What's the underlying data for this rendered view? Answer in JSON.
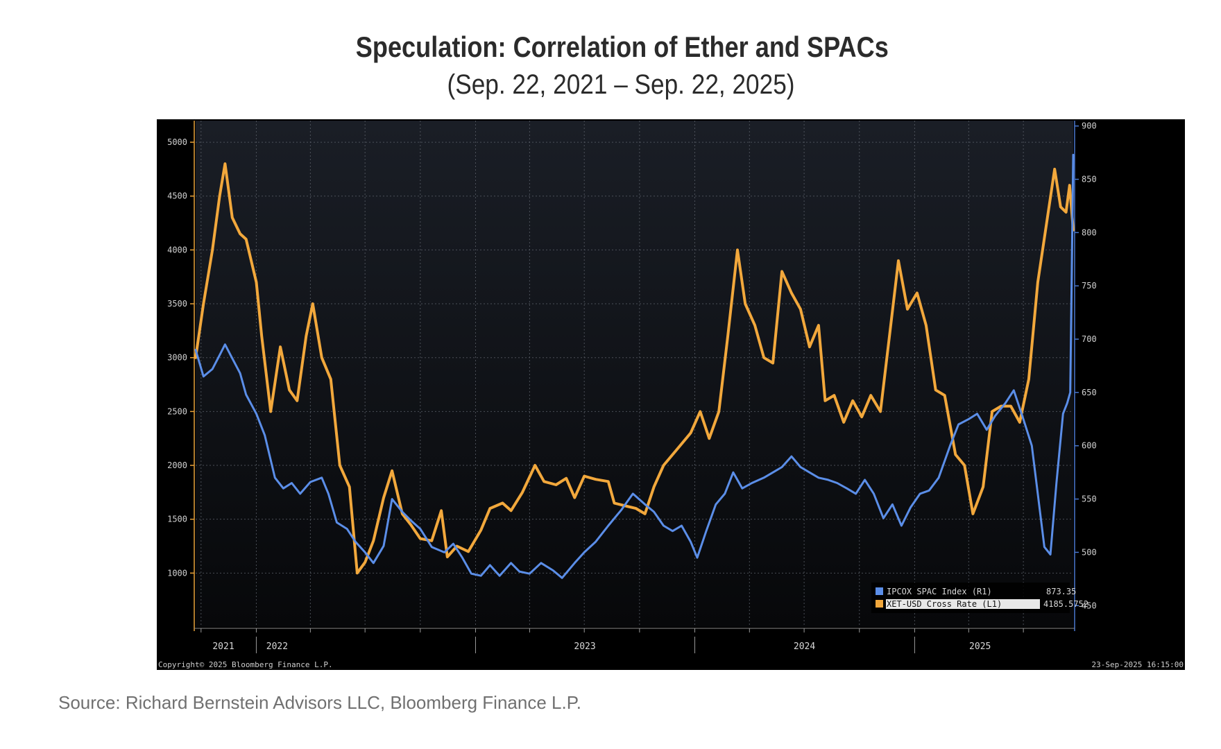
{
  "chart_data": {
    "type": "line",
    "title": "Speculation: Correlation of Ether and SPACs",
    "subtitle": "(Sep. 22, 2021 – Sep. 22, 2025)",
    "x_range": [
      "2021-09-22",
      "2025-09-22"
    ],
    "x_tick_labels": [
      "2021",
      "2022",
      "2023",
      "2024",
      "2025"
    ],
    "y_left": {
      "ticks": [
        1000,
        1500,
        2000,
        2500,
        3000,
        3500,
        4000,
        4500,
        5000
      ],
      "tick_labels": [
        "1000",
        "1500",
        "2000",
        "2500",
        "3000",
        "3500",
        "4000",
        "4500",
        "5000"
      ],
      "range": [
        500,
        5200
      ]
    },
    "y_right": {
      "ticks": [
        450,
        500,
        550,
        600,
        650,
        700,
        750,
        800,
        850,
        900
      ],
      "tick_labels": [
        "450",
        "500",
        "550",
        "600",
        "650",
        "700",
        "750",
        "800",
        "850",
        "900"
      ],
      "range": [
        430,
        905
      ]
    },
    "grid": true,
    "legend_position": "bottom-right",
    "series": [
      {
        "name": "IPCOX SPAC Index (R1)",
        "last_value": "873.35",
        "axis": "right",
        "color": "#5b8ee8",
        "points": [
          [
            "2021-09-22",
            690
          ],
          [
            "2021-10-05",
            665
          ],
          [
            "2021-10-20",
            672
          ],
          [
            "2021-11-01",
            685
          ],
          [
            "2021-11-10",
            695
          ],
          [
            "2021-11-22",
            682
          ],
          [
            "2021-12-05",
            668
          ],
          [
            "2021-12-15",
            648
          ],
          [
            "2022-01-01",
            630
          ],
          [
            "2022-01-15",
            610
          ],
          [
            "2022-02-01",
            570
          ],
          [
            "2022-02-15",
            560
          ],
          [
            "2022-03-01",
            565
          ],
          [
            "2022-03-15",
            555
          ],
          [
            "2022-04-01",
            566
          ],
          [
            "2022-04-20",
            570
          ],
          [
            "2022-05-01",
            555
          ],
          [
            "2022-05-15",
            528
          ],
          [
            "2022-06-01",
            522
          ],
          [
            "2022-06-15",
            510
          ],
          [
            "2022-07-01",
            500
          ],
          [
            "2022-07-15",
            490
          ],
          [
            "2022-08-01",
            506
          ],
          [
            "2022-08-15",
            550
          ],
          [
            "2022-09-01",
            538
          ],
          [
            "2022-09-15",
            530
          ],
          [
            "2022-10-01",
            522
          ],
          [
            "2022-10-20",
            505
          ],
          [
            "2022-11-10",
            500
          ],
          [
            "2022-11-25",
            508
          ],
          [
            "2022-12-10",
            495
          ],
          [
            "2022-12-25",
            480
          ],
          [
            "2023-01-10",
            478
          ],
          [
            "2023-01-25",
            488
          ],
          [
            "2023-02-10",
            478
          ],
          [
            "2023-03-01",
            490
          ],
          [
            "2023-03-15",
            482
          ],
          [
            "2023-04-01",
            480
          ],
          [
            "2023-04-20",
            490
          ],
          [
            "2023-05-10",
            483
          ],
          [
            "2023-05-25",
            476
          ],
          [
            "2023-06-15",
            490
          ],
          [
            "2023-07-01",
            500
          ],
          [
            "2023-07-20",
            510
          ],
          [
            "2023-08-10",
            525
          ],
          [
            "2023-09-01",
            540
          ],
          [
            "2023-09-20",
            555
          ],
          [
            "2023-10-10",
            545
          ],
          [
            "2023-10-25",
            538
          ],
          [
            "2023-11-10",
            525
          ],
          [
            "2023-11-25",
            520
          ],
          [
            "2023-12-10",
            525
          ],
          [
            "2023-12-25",
            510
          ],
          [
            "2024-01-05",
            495
          ],
          [
            "2024-01-20",
            520
          ],
          [
            "2024-02-05",
            545
          ],
          [
            "2024-02-20",
            555
          ],
          [
            "2024-03-05",
            575
          ],
          [
            "2024-03-20",
            560
          ],
          [
            "2024-04-05",
            565
          ],
          [
            "2024-04-25",
            570
          ],
          [
            "2024-05-10",
            575
          ],
          [
            "2024-05-25",
            580
          ],
          [
            "2024-06-10",
            590
          ],
          [
            "2024-06-25",
            580
          ],
          [
            "2024-07-10",
            575
          ],
          [
            "2024-07-25",
            570
          ],
          [
            "2024-08-10",
            568
          ],
          [
            "2024-08-25",
            565
          ],
          [
            "2024-09-10",
            560
          ],
          [
            "2024-09-25",
            555
          ],
          [
            "2024-10-10",
            568
          ],
          [
            "2024-10-25",
            555
          ],
          [
            "2024-11-10",
            532
          ],
          [
            "2024-11-25",
            545
          ],
          [
            "2024-12-10",
            525
          ],
          [
            "2024-12-25",
            542
          ],
          [
            "2025-01-10",
            555
          ],
          [
            "2025-01-25",
            558
          ],
          [
            "2025-02-10",
            570
          ],
          [
            "2025-03-01",
            600
          ],
          [
            "2025-03-15",
            620
          ],
          [
            "2025-04-01",
            625
          ],
          [
            "2025-04-15",
            630
          ],
          [
            "2025-05-01",
            615
          ],
          [
            "2025-05-15",
            628
          ],
          [
            "2025-06-01",
            640
          ],
          [
            "2025-06-15",
            652
          ],
          [
            "2025-07-01",
            625
          ],
          [
            "2025-07-15",
            600
          ],
          [
            "2025-07-25",
            555
          ],
          [
            "2025-08-05",
            505
          ],
          [
            "2025-08-15",
            498
          ],
          [
            "2025-08-25",
            565
          ],
          [
            "2025-09-05",
            630
          ],
          [
            "2025-09-12",
            640
          ],
          [
            "2025-09-17",
            650
          ],
          [
            "2025-09-22",
            873
          ]
        ]
      },
      {
        "name": "XET-USD Cross Rate (L1)",
        "last_value": "4185.5752",
        "axis": "left",
        "color": "#f2a83c",
        "points": [
          [
            "2021-09-22",
            3000
          ],
          [
            "2021-10-05",
            3500
          ],
          [
            "2021-10-20",
            4000
          ],
          [
            "2021-11-01",
            4500
          ],
          [
            "2021-11-10",
            4800
          ],
          [
            "2021-11-22",
            4300
          ],
          [
            "2021-12-05",
            4150
          ],
          [
            "2021-12-15",
            4100
          ],
          [
            "2022-01-01",
            3700
          ],
          [
            "2022-01-10",
            3200
          ],
          [
            "2022-01-25",
            2500
          ],
          [
            "2022-02-10",
            3100
          ],
          [
            "2022-02-25",
            2700
          ],
          [
            "2022-03-10",
            2600
          ],
          [
            "2022-03-25",
            3200
          ],
          [
            "2022-04-05",
            3500
          ],
          [
            "2022-04-20",
            3000
          ],
          [
            "2022-05-05",
            2800
          ],
          [
            "2022-05-20",
            2000
          ],
          [
            "2022-06-05",
            1800
          ],
          [
            "2022-06-18",
            1000
          ],
          [
            "2022-07-01",
            1100
          ],
          [
            "2022-07-15",
            1300
          ],
          [
            "2022-08-01",
            1700
          ],
          [
            "2022-08-15",
            1950
          ],
          [
            "2022-09-01",
            1550
          ],
          [
            "2022-09-15",
            1450
          ],
          [
            "2022-10-01",
            1320
          ],
          [
            "2022-10-20",
            1300
          ],
          [
            "2022-11-05",
            1580
          ],
          [
            "2022-11-15",
            1150
          ],
          [
            "2022-12-01",
            1250
          ],
          [
            "2022-12-20",
            1200
          ],
          [
            "2023-01-10",
            1400
          ],
          [
            "2023-01-25",
            1600
          ],
          [
            "2023-02-15",
            1650
          ],
          [
            "2023-03-01",
            1580
          ],
          [
            "2023-03-20",
            1750
          ],
          [
            "2023-04-10",
            2000
          ],
          [
            "2023-04-25",
            1850
          ],
          [
            "2023-05-15",
            1820
          ],
          [
            "2023-06-01",
            1880
          ],
          [
            "2023-06-15",
            1700
          ],
          [
            "2023-07-01",
            1900
          ],
          [
            "2023-07-20",
            1870
          ],
          [
            "2023-08-10",
            1850
          ],
          [
            "2023-08-20",
            1650
          ],
          [
            "2023-09-10",
            1620
          ],
          [
            "2023-09-25",
            1600
          ],
          [
            "2023-10-10",
            1550
          ],
          [
            "2023-10-25",
            1800
          ],
          [
            "2023-11-10",
            2000
          ],
          [
            "2023-11-25",
            2100
          ],
          [
            "2023-12-10",
            2200
          ],
          [
            "2023-12-25",
            2300
          ],
          [
            "2024-01-10",
            2500
          ],
          [
            "2024-01-25",
            2250
          ],
          [
            "2024-02-10",
            2500
          ],
          [
            "2024-02-25",
            3200
          ],
          [
            "2024-03-12",
            4000
          ],
          [
            "2024-03-25",
            3500
          ],
          [
            "2024-04-10",
            3300
          ],
          [
            "2024-04-25",
            3000
          ],
          [
            "2024-05-10",
            2950
          ],
          [
            "2024-05-25",
            3800
          ],
          [
            "2024-06-10",
            3600
          ],
          [
            "2024-06-25",
            3450
          ],
          [
            "2024-07-10",
            3100
          ],
          [
            "2024-07-25",
            3300
          ],
          [
            "2024-08-05",
            2600
          ],
          [
            "2024-08-20",
            2650
          ],
          [
            "2024-09-05",
            2400
          ],
          [
            "2024-09-20",
            2600
          ],
          [
            "2024-10-05",
            2450
          ],
          [
            "2024-10-20",
            2650
          ],
          [
            "2024-11-05",
            2500
          ],
          [
            "2024-11-20",
            3200
          ],
          [
            "2024-12-05",
            3900
          ],
          [
            "2024-12-20",
            3450
          ],
          [
            "2025-01-05",
            3600
          ],
          [
            "2025-01-20",
            3300
          ],
          [
            "2025-02-05",
            2700
          ],
          [
            "2025-02-20",
            2650
          ],
          [
            "2025-03-10",
            2100
          ],
          [
            "2025-03-25",
            2000
          ],
          [
            "2025-04-08",
            1550
          ],
          [
            "2025-04-25",
            1800
          ],
          [
            "2025-05-10",
            2500
          ],
          [
            "2025-05-25",
            2550
          ],
          [
            "2025-06-10",
            2550
          ],
          [
            "2025-06-25",
            2400
          ],
          [
            "2025-07-10",
            2800
          ],
          [
            "2025-07-25",
            3700
          ],
          [
            "2025-08-10",
            4300
          ],
          [
            "2025-08-22",
            4750
          ],
          [
            "2025-09-01",
            4400
          ],
          [
            "2025-09-10",
            4350
          ],
          [
            "2025-09-16",
            4600
          ],
          [
            "2025-09-22",
            4185
          ]
        ]
      }
    ]
  },
  "chart_footer": {
    "copyright": "Copyright© 2025 Bloomberg Finance L.P.",
    "timestamp": "23-Sep-2025 16:15:00"
  },
  "source_note": "Source: Richard Bernstein Advisors LLC, Bloomberg Finance L.P.",
  "colors": {
    "plot_bg_top": "#1a1e26",
    "plot_bg_bottom": "#070809",
    "grid": "#5a5f68",
    "ether": "#f2a83c",
    "spac": "#5b8ee8",
    "left_axis": "#e8a23a",
    "right_axis": "#4a78d0"
  }
}
